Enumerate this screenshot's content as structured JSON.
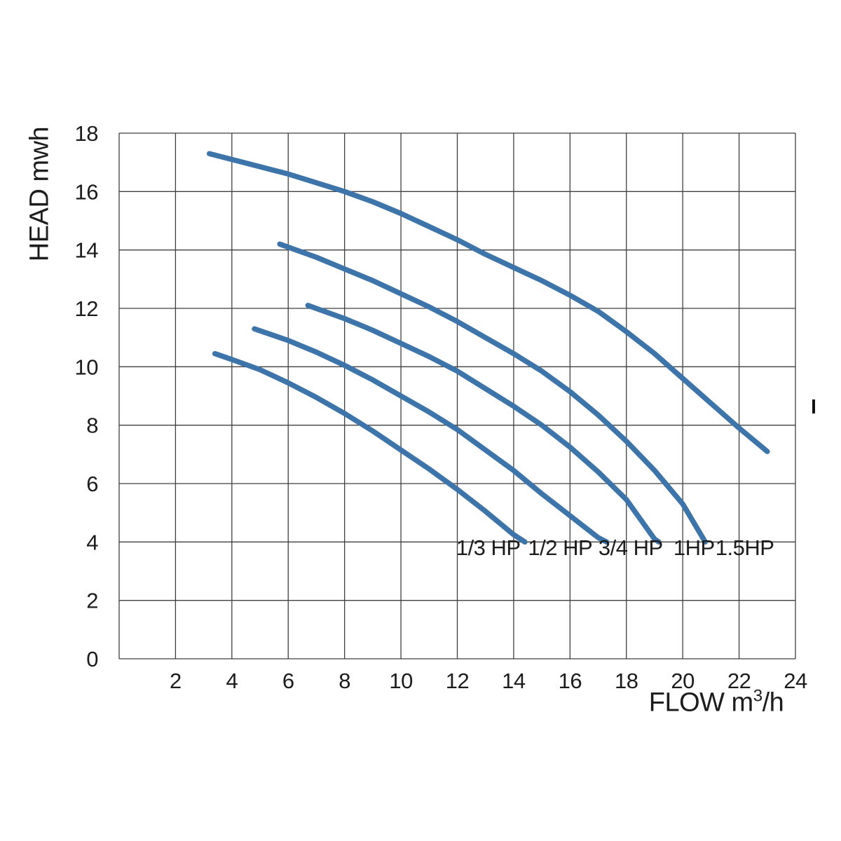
{
  "colors": {
    "curve": "#3d74a9",
    "grid": "#3f3f3f",
    "text": "#1c1c1c",
    "background": "#ffffff"
  },
  "axes": {
    "ylabel": "HEAD mwh",
    "xlabel_prefix": "FLOW  m",
    "xlabel_sup": "3",
    "xlabel_suffix": "/h"
  },
  "chart_data": {
    "type": "line",
    "title": "",
    "xlabel": "FLOW m3/h",
    "ylabel": "HEAD mwh",
    "xlim": [
      0,
      24
    ],
    "ylim": [
      0,
      18
    ],
    "xticks": [
      2,
      4,
      6,
      8,
      10,
      12,
      14,
      16,
      18,
      20,
      22,
      24
    ],
    "yticks": [
      0,
      2,
      4,
      6,
      8,
      10,
      12,
      14,
      16,
      18
    ],
    "grid": true,
    "grid_step_x": 2,
    "grid_step_y": 2,
    "legend_position": "inline-labels",
    "series": [
      {
        "name": "1/3 HP",
        "points": [
          [
            3.4,
            10.45
          ],
          [
            4,
            10.25
          ],
          [
            5,
            9.9
          ],
          [
            6,
            9.45
          ],
          [
            7,
            8.95
          ],
          [
            8,
            8.4
          ],
          [
            9,
            7.8
          ],
          [
            10,
            7.15
          ],
          [
            11,
            6.5
          ],
          [
            12,
            5.8
          ],
          [
            13,
            5.05
          ],
          [
            14,
            4.25
          ],
          [
            14.4,
            4.0
          ]
        ]
      },
      {
        "name": "1/2 HP",
        "points": [
          [
            4.8,
            11.3
          ],
          [
            6,
            10.9
          ],
          [
            7,
            10.5
          ],
          [
            8,
            10.05
          ],
          [
            9,
            9.55
          ],
          [
            10,
            9.0
          ],
          [
            11,
            8.45
          ],
          [
            12,
            7.85
          ],
          [
            13,
            7.15
          ],
          [
            14,
            6.45
          ],
          [
            15,
            5.65
          ],
          [
            16,
            4.9
          ],
          [
            17,
            4.15
          ],
          [
            17.3,
            4.0
          ]
        ]
      },
      {
        "name": "3/4 HP",
        "points": [
          [
            6.7,
            12.1
          ],
          [
            8,
            11.65
          ],
          [
            9,
            11.25
          ],
          [
            10,
            10.8
          ],
          [
            11,
            10.35
          ],
          [
            12,
            9.85
          ],
          [
            13,
            9.25
          ],
          [
            14,
            8.65
          ],
          [
            15,
            8.0
          ],
          [
            16,
            7.25
          ],
          [
            17,
            6.4
          ],
          [
            18,
            5.45
          ],
          [
            19,
            4.1
          ],
          [
            19.15,
            4.0
          ]
        ]
      },
      {
        "name": "1HP",
        "points": [
          [
            5.7,
            14.2
          ],
          [
            7,
            13.75
          ],
          [
            8,
            13.35
          ],
          [
            9,
            12.95
          ],
          [
            10,
            12.5
          ],
          [
            11,
            12.05
          ],
          [
            12,
            11.55
          ],
          [
            13,
            11.0
          ],
          [
            14,
            10.45
          ],
          [
            15,
            9.85
          ],
          [
            16,
            9.15
          ],
          [
            17,
            8.35
          ],
          [
            18,
            7.45
          ],
          [
            19,
            6.45
          ],
          [
            20,
            5.3
          ],
          [
            20.8,
            4.0
          ]
        ]
      },
      {
        "name": "1.5HP",
        "points": [
          [
            3.2,
            17.3
          ],
          [
            4,
            17.1
          ],
          [
            5,
            16.85
          ],
          [
            6,
            16.6
          ],
          [
            7,
            16.3
          ],
          [
            8,
            16.0
          ],
          [
            9,
            15.65
          ],
          [
            10,
            15.25
          ],
          [
            11,
            14.8
          ],
          [
            12,
            14.35
          ],
          [
            13,
            13.85
          ],
          [
            14,
            13.4
          ],
          [
            15,
            12.95
          ],
          [
            16,
            12.45
          ],
          [
            17,
            11.9
          ],
          [
            18,
            11.2
          ],
          [
            19,
            10.45
          ],
          [
            20,
            9.6
          ],
          [
            21,
            8.75
          ],
          [
            22,
            7.9
          ],
          [
            23,
            7.1
          ]
        ]
      }
    ],
    "series_labels": [
      {
        "text": "1/3 HP",
        "x": 13.1,
        "y": 3.55
      },
      {
        "text": "1/2 HP",
        "x": 15.65,
        "y": 3.55
      },
      {
        "text": "3/4 HP",
        "x": 18.15,
        "y": 3.55
      },
      {
        "text": "1HP",
        "x": 20.4,
        "y": 3.55
      },
      {
        "text": "1.5HP",
        "x": 22.2,
        "y": 3.55
      }
    ]
  }
}
